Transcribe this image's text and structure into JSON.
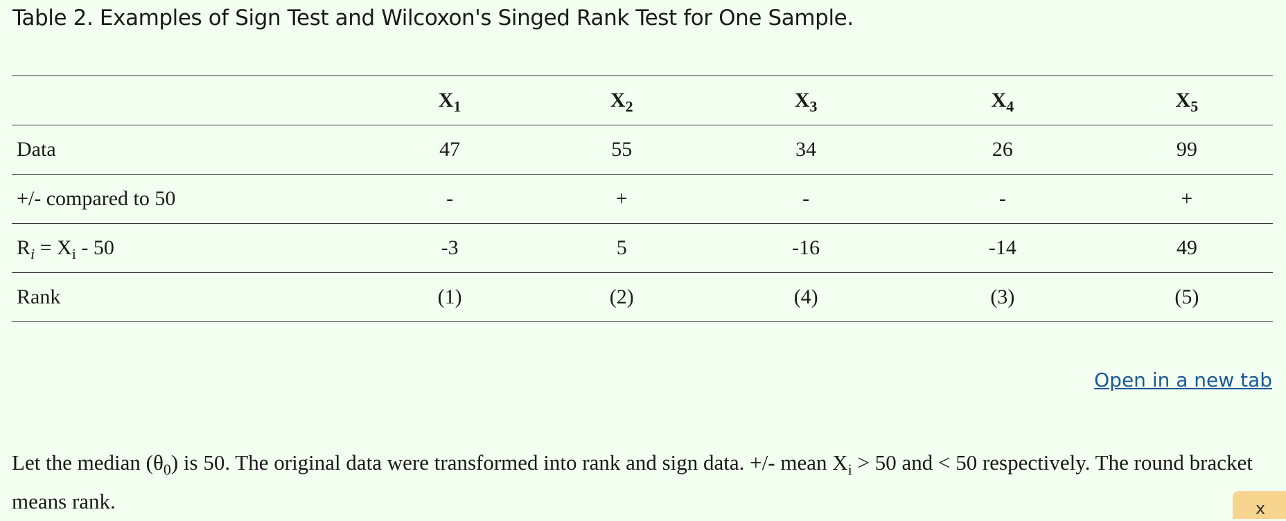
{
  "caption": "Table 2. Examples of Sign Test and Wilcoxon's Singed Rank Test for One Sample.",
  "table": {
    "columns": [
      {
        "base": "X",
        "sub": "1"
      },
      {
        "base": "X",
        "sub": "2"
      },
      {
        "base": "X",
        "sub": "3"
      },
      {
        "base": "X",
        "sub": "4"
      },
      {
        "base": "X",
        "sub": "5"
      }
    ],
    "rows": [
      {
        "label": "Data",
        "cells": [
          "47",
          "55",
          "34",
          "26",
          "99"
        ]
      },
      {
        "label": "+/- compared to 50",
        "cells": [
          "-",
          "+",
          "-",
          "-",
          "+"
        ]
      },
      {
        "label_parts": {
          "r": "R",
          "r_sub": "i",
          "eq": " = X",
          "x_sub": "i",
          "rest": " - 50"
        },
        "cells": [
          "-3",
          "5",
          "-16",
          "-14",
          "49"
        ]
      },
      {
        "label": "Rank",
        "cells": [
          "(1)",
          "(2)",
          "(4)",
          "(3)",
          "(5)"
        ]
      }
    ]
  },
  "link": {
    "label": "Open in a new tab"
  },
  "note": {
    "part1": "Let the median (θ",
    "sub1": "0",
    "part2": ") is 50. The original data were transformed into rank and sign data. +/- mean X",
    "sub2": "i",
    "part3": " > 50 and < 50 respectively. The round bracket means rank."
  },
  "widget": {
    "icon": "close-icon",
    "glyph": "x",
    "color": "#f7d58f"
  }
}
